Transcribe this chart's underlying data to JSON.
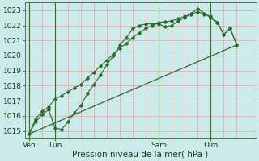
{
  "xlabel": "Pression niveau de la mer( hPa )",
  "bg_color": "#cceaea",
  "grid_color_h": "#e8b8b8",
  "grid_color_v": "#e8b8b8",
  "line_color": "#2d6a2d",
  "ylim": [
    1014.5,
    1023.5
  ],
  "yticks": [
    1015,
    1016,
    1017,
    1018,
    1019,
    1020,
    1021,
    1022,
    1023
  ],
  "day_labels": [
    "Ven",
    "Lun",
    "Sam",
    "Dim"
  ],
  "day_positions": [
    0,
    24,
    120,
    168
  ],
  "vline_x": [
    0,
    24,
    120,
    168
  ],
  "xlim": [
    -4,
    210
  ],
  "series1_x": [
    0,
    6,
    12,
    18,
    24,
    30,
    36,
    42,
    48,
    54,
    60,
    66,
    72,
    78,
    84,
    90,
    96,
    102,
    108,
    114,
    120,
    126,
    132,
    138,
    144,
    150,
    156,
    162,
    168,
    174,
    180,
    186,
    192
  ],
  "series1_y": [
    1014.8,
    1015.6,
    1016.1,
    1016.4,
    1015.2,
    1015.1,
    1015.6,
    1016.2,
    1016.7,
    1017.5,
    1018.1,
    1018.7,
    1019.4,
    1020.0,
    1020.7,
    1021.2,
    1021.8,
    1022.0,
    1022.1,
    1022.1,
    1022.1,
    1021.9,
    1022.0,
    1022.3,
    1022.5,
    1022.8,
    1023.1,
    1022.8,
    1022.5,
    1022.2,
    1021.4,
    1021.8,
    1020.7
  ],
  "series2_x": [
    0,
    6,
    12,
    18,
    24,
    30,
    36,
    42,
    48,
    54,
    60,
    66,
    72,
    78,
    84,
    90,
    96,
    102,
    108,
    114,
    120,
    126,
    132,
    138,
    144,
    150,
    156,
    162,
    168,
    174,
    180,
    186,
    192
  ],
  "series2_y": [
    1014.8,
    1015.8,
    1016.3,
    1016.6,
    1017.1,
    1017.35,
    1017.6,
    1017.85,
    1018.1,
    1018.5,
    1018.9,
    1019.3,
    1019.7,
    1020.1,
    1020.5,
    1020.8,
    1021.2,
    1021.5,
    1021.8,
    1022.0,
    1022.2,
    1022.25,
    1022.3,
    1022.45,
    1022.6,
    1022.75,
    1022.9,
    1022.75,
    1022.6,
    1022.2,
    1021.4,
    1021.8,
    1020.7
  ],
  "series3_x": [
    0,
    192
  ],
  "series3_y": [
    1014.8,
    1020.7
  ]
}
